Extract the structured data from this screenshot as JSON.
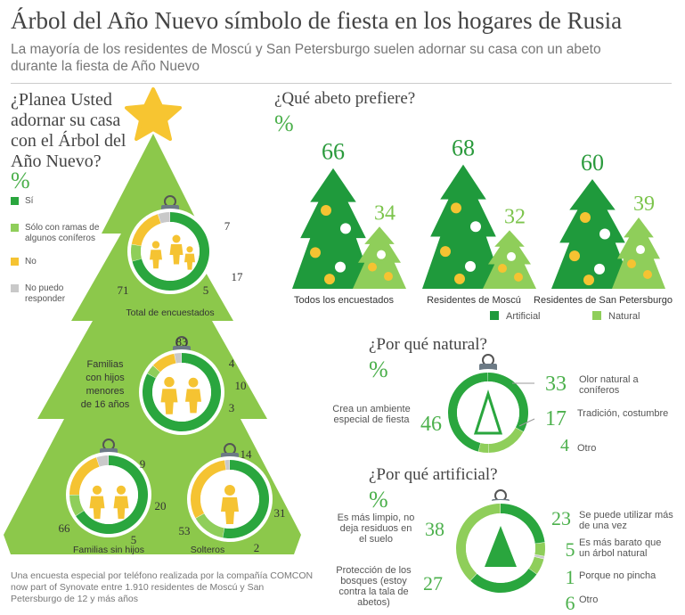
{
  "header": {
    "title": "Árbol del Año Nuevo símbolo de fiesta en los hogares de Rusia",
    "subtitle": "La mayoría de los residentes de Moscú y San Petersburgo suelen adornar su casa con un abeto durante la fiesta de Año Nuevo"
  },
  "colors": {
    "dark_green": "#2aa63e",
    "light_green": "#8fce5a",
    "yellow": "#f5c332",
    "gray": "#c9c9c9",
    "tree_green": "#8cc84b"
  },
  "left": {
    "question_lines": [
      "¿Planea Usted",
      "adornar su casa",
      "con el Árbol del",
      "Año Nuevo?"
    ],
    "pct": "%",
    "legend": [
      {
        "label": "Sí",
        "color": "#2aa63e"
      },
      {
        "label": "Sólo con ramas de algunos coníferos",
        "color": "#8fce5a"
      },
      {
        "label": "No",
        "color": "#f5c332"
      },
      {
        "label": "No puedo responder",
        "color": "#c9c9c9"
      }
    ],
    "footnote": "Una encuesta especial por teléfono realizada por la compañía COMCON now part of Synovate entre 1.910 residentes de Moscú y San Petersburgo de 12 y más años"
  },
  "middle": {
    "question": "¿Qué abeto prefiere?",
    "pct": "%",
    "legend": [
      {
        "label": "Artificial",
        "color": "#1f9a3c"
      },
      {
        "label": "Natural",
        "color": "#8fce5a"
      }
    ]
  },
  "natural": {
    "question": "¿Por qué natural?",
    "pct": "%",
    "labels": [
      "Olor natural a coníferos",
      "Tradición, costumbre",
      "Otro",
      "Crea un ambiente especial de fiesta"
    ]
  },
  "artificial": {
    "question": "¿Por qué artificial?",
    "pct": "%",
    "labels": [
      "Se puede utilizar más de una vez",
      "Es más barato que un árbol natural",
      "Porque no pincha",
      "Otro",
      "Protección de los bosques (estoy contra la tala de abetos)",
      "Es más limpio, no deja residuos en el suelo"
    ]
  },
  "chart_data": [
    {
      "type": "pie",
      "title": "Total de encuestados",
      "categories": [
        "Sí",
        "Sólo con ramas de algunos coníferos",
        "No",
        "No puedo responder"
      ],
      "values": [
        71,
        7,
        17,
        5
      ]
    },
    {
      "type": "pie",
      "title": "Familias con hijos menores de 16 años",
      "categories": [
        "Sí",
        "Sólo con ramas de algunos coníferos",
        "No",
        "No puedo responder"
      ],
      "values": [
        83,
        4,
        10,
        3
      ]
    },
    {
      "type": "pie",
      "title": "Familias sin hijos",
      "categories": [
        "Sí",
        "Sólo con ramas de algunos coníferos",
        "No",
        "No puedo responder"
      ],
      "values": [
        66,
        9,
        20,
        5
      ]
    },
    {
      "type": "pie",
      "title": "Solteros",
      "categories": [
        "Sí",
        "Sólo con ramas de algunos coníferos",
        "No",
        "No puedo responder"
      ],
      "values": [
        53,
        14,
        31,
        2
      ]
    },
    {
      "type": "bar",
      "title": "¿Qué abeto prefiere?",
      "categories": [
        "Todos los encuestados",
        "Residentes de Moscú",
        "Residentes de San Petersburgo"
      ],
      "series": [
        {
          "name": "Artificial",
          "values": [
            66,
            68,
            60
          ]
        },
        {
          "name": "Natural",
          "values": [
            34,
            32,
            39
          ]
        }
      ]
    },
    {
      "type": "pie",
      "title": "¿Por qué natural?",
      "categories": [
        "Olor natural a coníferos",
        "Tradición, costumbre",
        "Otro",
        "Crea un ambiente especial de fiesta"
      ],
      "values": [
        33,
        17,
        4,
        46
      ]
    },
    {
      "type": "pie",
      "title": "¿Por qué artificial?",
      "categories": [
        "Se puede utilizar más de una vez",
        "Es más barato que un árbol natural",
        "Porque no pincha",
        "Otro",
        "Protección de los bosques (estoy contra la tala de abetos)",
        "Es más limpio, no deja residuos en el suelo"
      ],
      "values": [
        23,
        5,
        1,
        6,
        27,
        38
      ]
    }
  ]
}
